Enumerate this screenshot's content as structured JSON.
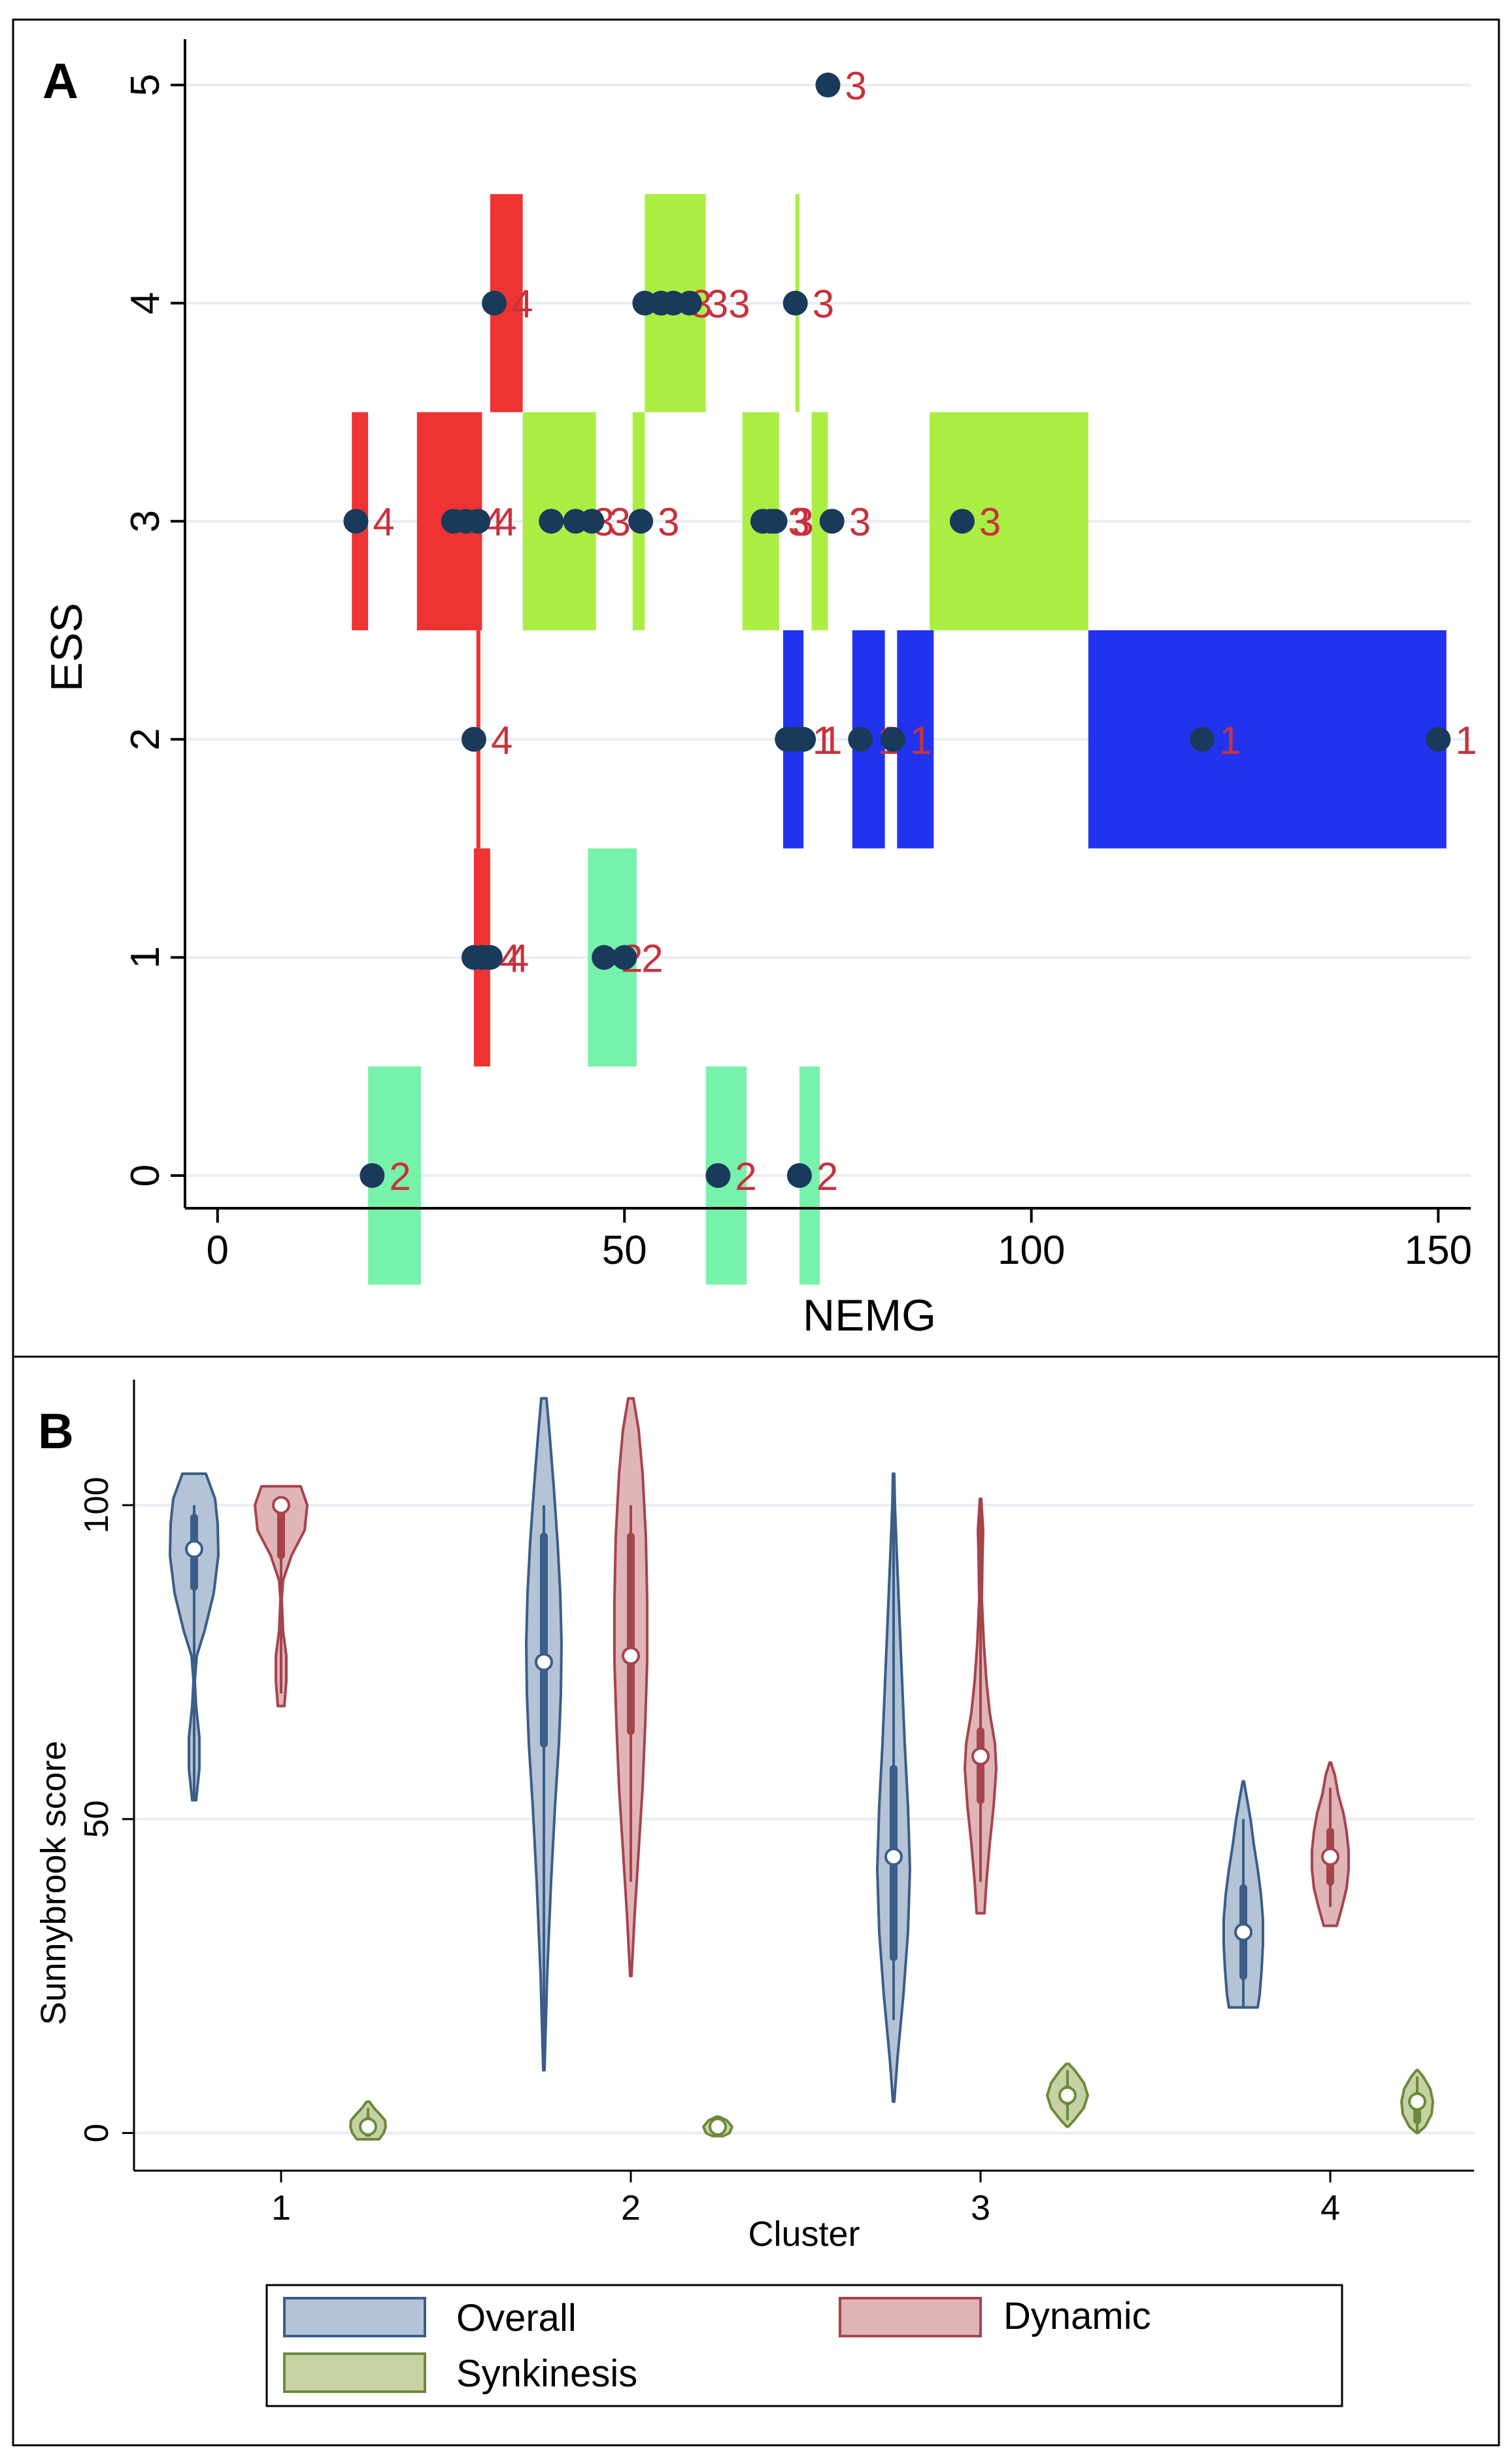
{
  "colors": {
    "cluster1": "#2233ee",
    "cluster2": "#77f2aa",
    "cluster3": "#aaee44",
    "cluster4": "#ee3333",
    "point": "#1a3a5c",
    "point_label": "#c8323c",
    "overall_fill": "#b4c3d6",
    "overall_edge": "#3a5e88",
    "dynamic_fill": "#dfb5b8",
    "dynamic_edge": "#a6444c",
    "synk_fill": "#c7d2a4",
    "synk_edge": "#6c8a3a"
  },
  "chart_data": [
    {
      "panel_label": "A",
      "type": "scatter",
      "title": "",
      "xlabel": "NEMG",
      "ylabel": "ESS",
      "xlim": [
        -4,
        154
      ],
      "ylim": [
        -0.15,
        5.15
      ],
      "xticks": [
        0,
        50,
        100,
        150
      ],
      "xtick_labels": [
        "0",
        "50",
        "100",
        "150"
      ],
      "yticks": [
        0,
        1,
        2,
        3,
        4,
        5
      ],
      "ytick_labels": [
        "0",
        "1",
        "2",
        "3",
        "4",
        "5"
      ],
      "grid": true,
      "bars": [
        {
          "cluster": 4,
          "ess": 3,
          "x0": 16.5,
          "x1": 18.5
        },
        {
          "cluster": 4,
          "ess": 3,
          "x0": 24.5,
          "x1": 32.5
        },
        {
          "cluster": 4,
          "ess": 4,
          "x0": 33.5,
          "x1": 37.5
        },
        {
          "cluster": 4,
          "ess": 2,
          "x0": 31.8,
          "x1": 32.3
        },
        {
          "cluster": 4,
          "ess": 1,
          "x0": 31.5,
          "x1": 33.5
        },
        {
          "cluster": 3,
          "ess": 3,
          "x0": 37.5,
          "x1": 46.5
        },
        {
          "cluster": 3,
          "ess": 3,
          "x0": 51.0,
          "x1": 52.5
        },
        {
          "cluster": 3,
          "ess": 3,
          "x0": 64.5,
          "x1": 69.0
        },
        {
          "cluster": 3,
          "ess": 3,
          "x0": 73.0,
          "x1": 75.0
        },
        {
          "cluster": 3,
          "ess": 3,
          "x0": 87.5,
          "x1": 107.0
        },
        {
          "cluster": 3,
          "ess": 4,
          "x0": 52.5,
          "x1": 60.0
        },
        {
          "cluster": 3,
          "ess": 4,
          "x0": 71.0,
          "x1": 71.5
        },
        {
          "cluster": 1,
          "ess": 2,
          "x0": 69.5,
          "x1": 72.0
        },
        {
          "cluster": 1,
          "ess": 2,
          "x0": 78.0,
          "x1": 82.0
        },
        {
          "cluster": 1,
          "ess": 2,
          "x0": 83.5,
          "x1": 88.0
        },
        {
          "cluster": 1,
          "ess": 2,
          "x0": 107.0,
          "x1": 151.0
        },
        {
          "cluster": 2,
          "ess": 1,
          "x0": 45.5,
          "x1": 51.5
        },
        {
          "cluster": 2,
          "ess": 0,
          "x0": 18.5,
          "x1": 25.0
        },
        {
          "cluster": 2,
          "ess": 0,
          "x0": 60.0,
          "x1": 65.0
        },
        {
          "cluster": 2,
          "ess": 0,
          "x0": 71.5,
          "x1": 74.0
        }
      ],
      "points": [
        {
          "x": 75,
          "y": 5,
          "label": "3"
        },
        {
          "x": 34,
          "y": 4,
          "label": "4"
        },
        {
          "x": 52.5,
          "y": 4,
          "label": ""
        },
        {
          "x": 54.5,
          "y": 4,
          "label": ""
        },
        {
          "x": 56,
          "y": 4,
          "label": "3"
        },
        {
          "x": 58,
          "y": 4,
          "label": "33"
        },
        {
          "x": 71,
          "y": 4,
          "label": "3"
        },
        {
          "x": 17,
          "y": 3,
          "label": "4"
        },
        {
          "x": 29,
          "y": 3,
          "label": ""
        },
        {
          "x": 30.5,
          "y": 3,
          "label": "4"
        },
        {
          "x": 32,
          "y": 3,
          "label": "4"
        },
        {
          "x": 41,
          "y": 3,
          "label": ""
        },
        {
          "x": 44,
          "y": 3,
          "label": "3"
        },
        {
          "x": 46,
          "y": 3,
          "label": "3"
        },
        {
          "x": 52,
          "y": 3,
          "label": "3"
        },
        {
          "x": 67,
          "y": 3,
          "label": ""
        },
        {
          "x": 68,
          "y": 3,
          "label": "3"
        },
        {
          "x": 68.5,
          "y": 3,
          "label": "3"
        },
        {
          "x": 75.5,
          "y": 3,
          "label": "3"
        },
        {
          "x": 91.5,
          "y": 3,
          "label": "3"
        },
        {
          "x": 31.5,
          "y": 2,
          "label": "4"
        },
        {
          "x": 70,
          "y": 2,
          "label": ""
        },
        {
          "x": 71,
          "y": 2,
          "label": "1"
        },
        {
          "x": 72,
          "y": 2,
          "label": "1"
        },
        {
          "x": 79,
          "y": 2,
          "label": "1"
        },
        {
          "x": 83,
          "y": 2,
          "label": "1"
        },
        {
          "x": 121,
          "y": 2,
          "label": "1"
        },
        {
          "x": 150,
          "y": 2,
          "label": "1"
        },
        {
          "x": 31.5,
          "y": 1,
          "label": ""
        },
        {
          "x": 32.5,
          "y": 1,
          "label": "4"
        },
        {
          "x": 33.5,
          "y": 1,
          "label": "4"
        },
        {
          "x": 47.5,
          "y": 1,
          "label": "2"
        },
        {
          "x": 50,
          "y": 1,
          "label": "2"
        },
        {
          "x": 19,
          "y": 0,
          "label": "2"
        },
        {
          "x": 61.5,
          "y": 0,
          "label": "2"
        },
        {
          "x": 71.5,
          "y": 0,
          "label": "2"
        }
      ]
    },
    {
      "panel_label": "B",
      "type": "violin",
      "title": "",
      "xlabel": "Cluster",
      "ylabel": "Sunnybrook score",
      "ylim": [
        -6,
        120
      ],
      "categories": [
        "1",
        "2",
        "3",
        "4"
      ],
      "yticks": [
        0,
        50,
        100
      ],
      "ytick_labels": [
        "0",
        "50",
        "100"
      ],
      "grid": true,
      "legend": [
        "Overall",
        "Dynamic",
        "Synkinesis"
      ],
      "legend_position": "bottom",
      "series": [
        {
          "name": "Overall",
          "violins": [
            {
              "cluster": 1,
              "median": 93,
              "q1": 87,
              "q3": 98,
              "min": 53,
              "max": 100,
              "profile": [
                [
                  53,
                  3
                ],
                [
                  58,
                  8
                ],
                [
                  63,
                  8
                ],
                [
                  68,
                  3
                ],
                [
                  72,
                  1
                ],
                [
                  76,
                  4
                ],
                [
                  80,
                  16
                ],
                [
                  86,
                  30
                ],
                [
                  92,
                  37
                ],
                [
                  97,
                  36
                ],
                [
                  101,
                  32
                ],
                [
                  105,
                  18
                ]
              ]
            },
            {
              "cluster": 2,
              "median": 75,
              "q1": 62,
              "q3": 95,
              "min": 10,
              "max": 100,
              "profile": [
                [
                  10,
                  1
                ],
                [
                  25,
                  5
                ],
                [
                  40,
                  11
                ],
                [
                  52,
                  17
                ],
                [
                  62,
                  23
                ],
                [
                  70,
                  26
                ],
                [
                  78,
                  27
                ],
                [
                  86,
                  25
                ],
                [
                  94,
                  21
                ],
                [
                  103,
                  15
                ],
                [
                  111,
                  9
                ],
                [
                  117,
                  4
                ]
              ]
            },
            {
              "cluster": 3,
              "median": 44,
              "q1": 28,
              "q3": 58,
              "min": 18,
              "max": 100,
              "profile": [
                [
                  5,
                  1
                ],
                [
                  12,
                  6
                ],
                [
                  22,
                  15
                ],
                [
                  32,
                  22
                ],
                [
                  42,
                  25
                ],
                [
                  52,
                  22
                ],
                [
                  62,
                  17
                ],
                [
                  72,
                  13
                ],
                [
                  82,
                  9
                ],
                [
                  92,
                  5
                ],
                [
                  100,
                  2
                ],
                [
                  105,
                  1
                ]
              ]
            },
            {
              "cluster": 4,
              "median": 32,
              "q1": 25,
              "q3": 39,
              "min": 20,
              "max": 50,
              "profile": [
                [
                  20,
                  22
                ],
                [
                  22,
                  25
                ],
                [
                  26,
                  28
                ],
                [
                  30,
                  30
                ],
                [
                  34,
                  30
                ],
                [
                  38,
                  27
                ],
                [
                  42,
                  22
                ],
                [
                  46,
                  16
                ],
                [
                  50,
                  11
                ],
                [
                  53,
                  6
                ],
                [
                  56,
                  1
                ]
              ]
            }
          ]
        },
        {
          "name": "Dynamic",
          "violins": [
            {
              "cluster": 1,
              "median": 100,
              "q1": 92,
              "q3": 100,
              "min": 70,
              "max": 100,
              "profile": [
                [
                  68,
                  5
                ],
                [
                  72,
                  8
                ],
                [
                  76,
                  8
                ],
                [
                  80,
                  3
                ],
                [
                  85,
                  1
                ],
                [
                  88,
                  3
                ],
                [
                  92,
                  16
                ],
                [
                  96,
                  36
                ],
                [
                  100,
                  40
                ],
                [
                  103,
                  30
                ]
              ]
            },
            {
              "cluster": 2,
              "median": 76,
              "q1": 64,
              "q3": 95,
              "min": 40,
              "max": 100,
              "profile": [
                [
                  25,
                  1
                ],
                [
                  35,
                  6
                ],
                [
                  45,
                  12
                ],
                [
                  55,
                  18
                ],
                [
                  65,
                  22
                ],
                [
                  75,
                  25
                ],
                [
                  85,
                  25
                ],
                [
                  95,
                  23
                ],
                [
                  105,
                  18
                ],
                [
                  112,
                  12
                ],
                [
                  117,
                  4
                ]
              ]
            },
            {
              "cluster": 3,
              "median": 60,
              "q1": 53,
              "q3": 64,
              "min": 40,
              "max": 100,
              "profile": [
                [
                  35,
                  6
                ],
                [
                  40,
                  9
                ],
                [
                  46,
                  14
                ],
                [
                  52,
                  20
                ],
                [
                  58,
                  24
                ],
                [
                  62,
                  22
                ],
                [
                  67,
                  14
                ],
                [
                  72,
                  9
                ],
                [
                  78,
                  5
                ],
                [
                  85,
                  2
                ],
                [
                  92,
                  3
                ],
                [
                  96,
                  4
                ],
                [
                  101,
                  1
                ]
              ]
            },
            {
              "cluster": 4,
              "median": 44,
              "q1": 40,
              "q3": 48,
              "min": 36,
              "max": 55,
              "profile": [
                [
                  33,
                  10
                ],
                [
                  36,
                  18
                ],
                [
                  39,
                  25
                ],
                [
                  42,
                  28
                ],
                [
                  45,
                  28
                ],
                [
                  48,
                  25
                ],
                [
                  51,
                  20
                ],
                [
                  54,
                  12
                ],
                [
                  57,
                  7
                ],
                [
                  59,
                  1
                ]
              ]
            }
          ]
        },
        {
          "name": "Synkinesis",
          "violins": [
            {
              "cluster": 1,
              "median": 1,
              "q1": 0,
              "q3": 2,
              "min": 0,
              "max": 4,
              "profile": [
                [
                  -1,
                  17
                ],
                [
                  0,
                  24
                ],
                [
                  1,
                  27
                ],
                [
                  2,
                  26
                ],
                [
                  3,
                  18
                ],
                [
                  4,
                  9
                ],
                [
                  5,
                  2
                ]
              ]
            },
            {
              "cluster": 2,
              "median": 1,
              "q1": 0,
              "q3": 1,
              "min": 0,
              "max": 2,
              "profile": [
                [
                  -0.5,
                  8
                ],
                [
                  0,
                  18
                ],
                [
                  1,
                  22
                ],
                [
                  2,
                  14
                ],
                [
                  2.6,
                  2
                ]
              ]
            },
            {
              "cluster": 3,
              "median": 6,
              "q1": 5,
              "q3": 7,
              "min": 2,
              "max": 10,
              "profile": [
                [
                  1,
                  1
                ],
                [
                  2,
                  10
                ],
                [
                  4,
                  25
                ],
                [
                  6,
                  31
                ],
                [
                  8,
                  25
                ],
                [
                  10,
                  11
                ],
                [
                  11,
                  2
                ]
              ]
            },
            {
              "cluster": 4,
              "median": 5,
              "q1": 2,
              "q3": 6,
              "min": 0,
              "max": 9,
              "profile": [
                [
                  0,
                  1
                ],
                [
                  1,
                  12
                ],
                [
                  3,
                  22
                ],
                [
                  5,
                  24
                ],
                [
                  7,
                  20
                ],
                [
                  9,
                  9
                ],
                [
                  10,
                  1
                ]
              ]
            }
          ]
        }
      ]
    }
  ]
}
